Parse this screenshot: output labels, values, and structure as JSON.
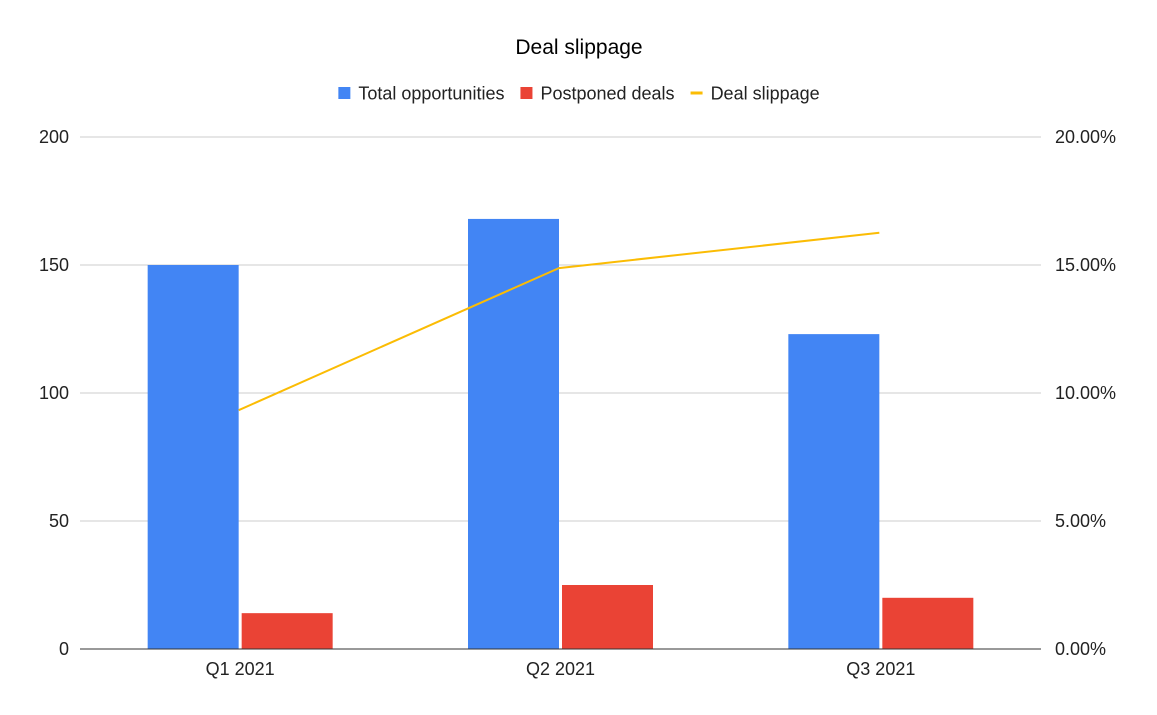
{
  "chart_data": {
    "type": "bar",
    "title": "Deal slippage",
    "categories": [
      "Q1 2021",
      "Q2 2021",
      "Q3 2021"
    ],
    "series": [
      {
        "name": "Total opportunities",
        "type": "bar",
        "axis": "left",
        "color": "#4285f4",
        "values": [
          150,
          168,
          123
        ]
      },
      {
        "name": "Postponed deals",
        "type": "bar",
        "axis": "left",
        "color": "#ea4335",
        "values": [
          14,
          25,
          20
        ]
      },
      {
        "name": "Deal slippage",
        "type": "line",
        "axis": "right",
        "color": "#fbbc04",
        "values": [
          0.0933,
          0.1488,
          0.1626
        ]
      }
    ],
    "y_left": {
      "min": 0,
      "max": 200,
      "ticks": [
        0,
        50,
        100,
        150,
        200
      ],
      "tick_labels": [
        "0",
        "50",
        "100",
        "150",
        "200"
      ]
    },
    "y_right": {
      "min": 0,
      "max": 0.2,
      "ticks": [
        0,
        0.05,
        0.1,
        0.15,
        0.2
      ],
      "tick_labels": [
        "0.00%",
        "5.00%",
        "10.00%",
        "15.00%",
        "20.00%"
      ]
    },
    "grid": true,
    "legend_position": "top"
  }
}
